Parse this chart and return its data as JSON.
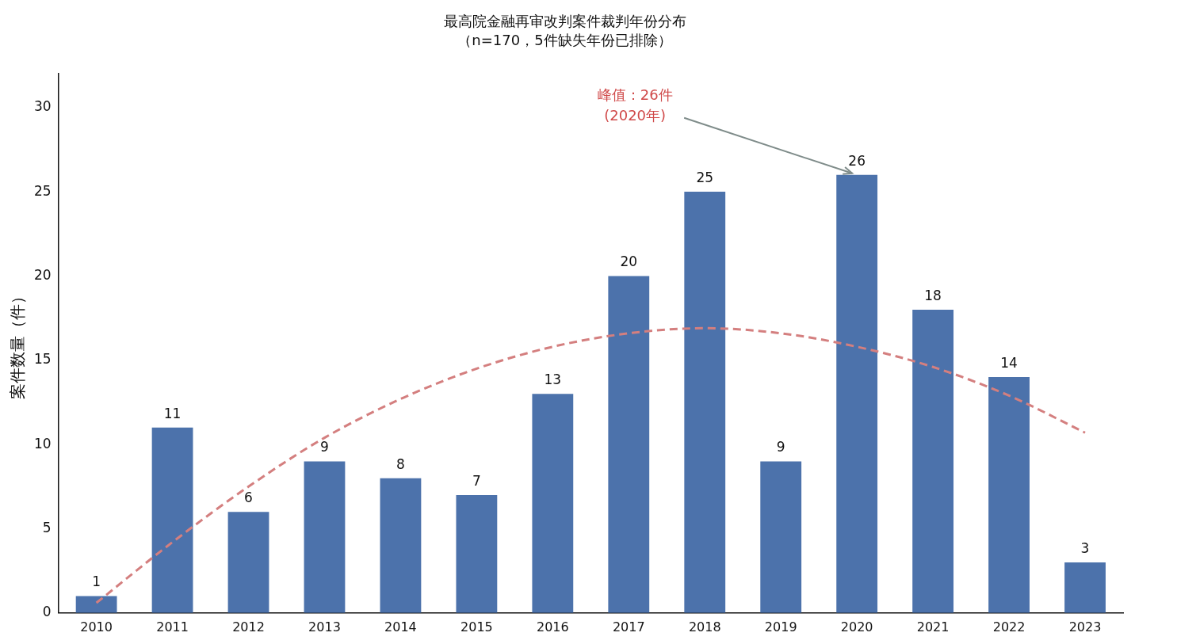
{
  "chart_data": {
    "type": "bar",
    "title": "最高院金融再审改判案件裁判年份分布",
    "subtitle": "（n=170，5件缺失年份已排除）",
    "ylabel": "案件数量（件）",
    "categories": [
      "2010",
      "2011",
      "2012",
      "2013",
      "2014",
      "2015",
      "2016",
      "2017",
      "2018",
      "2019",
      "2020",
      "2021",
      "2022",
      "2023"
    ],
    "series": [
      {
        "color": "#4c72ab",
        "values": [
          1,
          11,
          6,
          9,
          8,
          7,
          13,
          20,
          25,
          9,
          26,
          18,
          14,
          3
        ],
        "value_labels": [
          "1",
          "11",
          "6",
          "9",
          "8",
          "7",
          "13",
          "20",
          "25",
          "9",
          "26",
          "18",
          "14",
          "3"
        ]
      },
      {
        "type": "line",
        "color": "#d47f7f",
        "line_style": "dashed",
        "marker": "none",
        "values": [
          0.6,
          4.2,
          7.5,
          10.4,
          12.7,
          14.5,
          15.8,
          16.6,
          16.9,
          16.6,
          15.8,
          14.6,
          12.9,
          10.7
        ]
      }
    ],
    "ylim": [
      0,
      32
    ],
    "yticks": [
      0,
      5,
      10,
      15,
      20,
      25,
      30
    ],
    "grid": false,
    "legend": false,
    "annotations": [
      {
        "text": "峰值：26件\n(2020年)",
        "x": "2020",
        "y": 26
      }
    ]
  }
}
